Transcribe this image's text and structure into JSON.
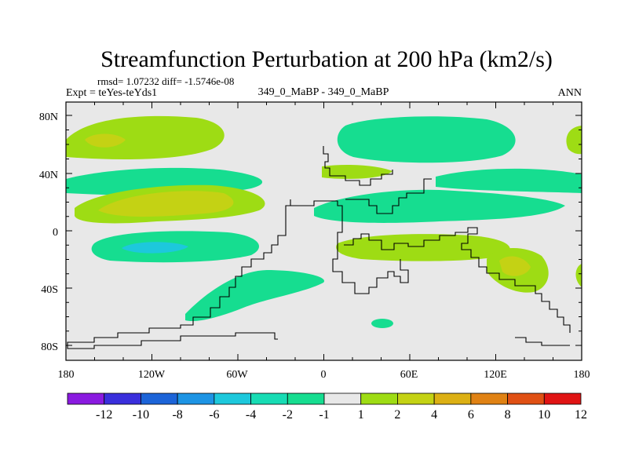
{
  "chart_data": {
    "type": "contour-map",
    "title": "Streamfunction Perturbation at 200 hPa (km2/s)",
    "stats": "rmsd= 1.07232 diff= -1.5746e-08",
    "experiment": "Expt = teYes-teYds1",
    "subtitle": "349_0_MaBP - 349_0_MaBP",
    "season": "ANN",
    "x_ticks": [
      "180",
      "120W",
      "60W",
      "0",
      "60E",
      "120E",
      "180"
    ],
    "y_ticks": [
      "80N",
      "40N",
      "0",
      "40S",
      "80S"
    ],
    "xlim": [
      -180,
      180
    ],
    "ylim": [
      -90,
      90
    ],
    "colorbar": {
      "labels": [
        "-12",
        "-10",
        "-8",
        "-6",
        "-4",
        "-2",
        "-1",
        "1",
        "2",
        "4",
        "6",
        "8",
        "10",
        "12"
      ],
      "colors": [
        "#8a1ae0",
        "#3a2fdc",
        "#1c64d8",
        "#1d94e4",
        "#1dc8dc",
        "#17dcb4",
        "#16dd90",
        "#e8e8e8",
        "#9edc14",
        "#c4d214",
        "#dcb014",
        "#e08214",
        "#e05014",
        "#e01414"
      ]
    },
    "features": [
      {
        "name": "positive-feature-north-pacific",
        "level": "2",
        "center": [
          -147,
          67
        ],
        "inner_level": "4",
        "inner_center": [
          -152,
          64
        ]
      },
      {
        "name": "negative-feature-north-atlantic-arctic",
        "level": "-1",
        "center": [
          50,
          64
        ]
      },
      {
        "name": "negative-feature-midlat-40n",
        "level": "-1",
        "center": [
          -120,
          36
        ]
      },
      {
        "name": "positive-feature-subtropical-pacific",
        "level": "2",
        "center": [
          -110,
          16
        ],
        "inner_level": "4",
        "inner_center": [
          -105,
          18
        ]
      },
      {
        "name": "negative-feature-tropical-pacific",
        "level": "-1",
        "center": [
          -100,
          -10
        ],
        "inner_level": "-2",
        "inner_center": [
          -108,
          -10
        ]
      },
      {
        "name": "negative-feature-south-atlantic",
        "level": "-1",
        "center": [
          -68,
          -50
        ]
      },
      {
        "name": "negative-feature-asia-subtropics",
        "level": "-1",
        "center": [
          80,
          16
        ]
      },
      {
        "name": "positive-feature-indian-ocean",
        "level": "2",
        "center": [
          85,
          -12
        ]
      },
      {
        "name": "positive-feature-australia",
        "level": "2",
        "center": [
          133,
          -25
        ],
        "inner_level": "4",
        "inner_center": [
          134,
          -22
        ]
      }
    ]
  }
}
